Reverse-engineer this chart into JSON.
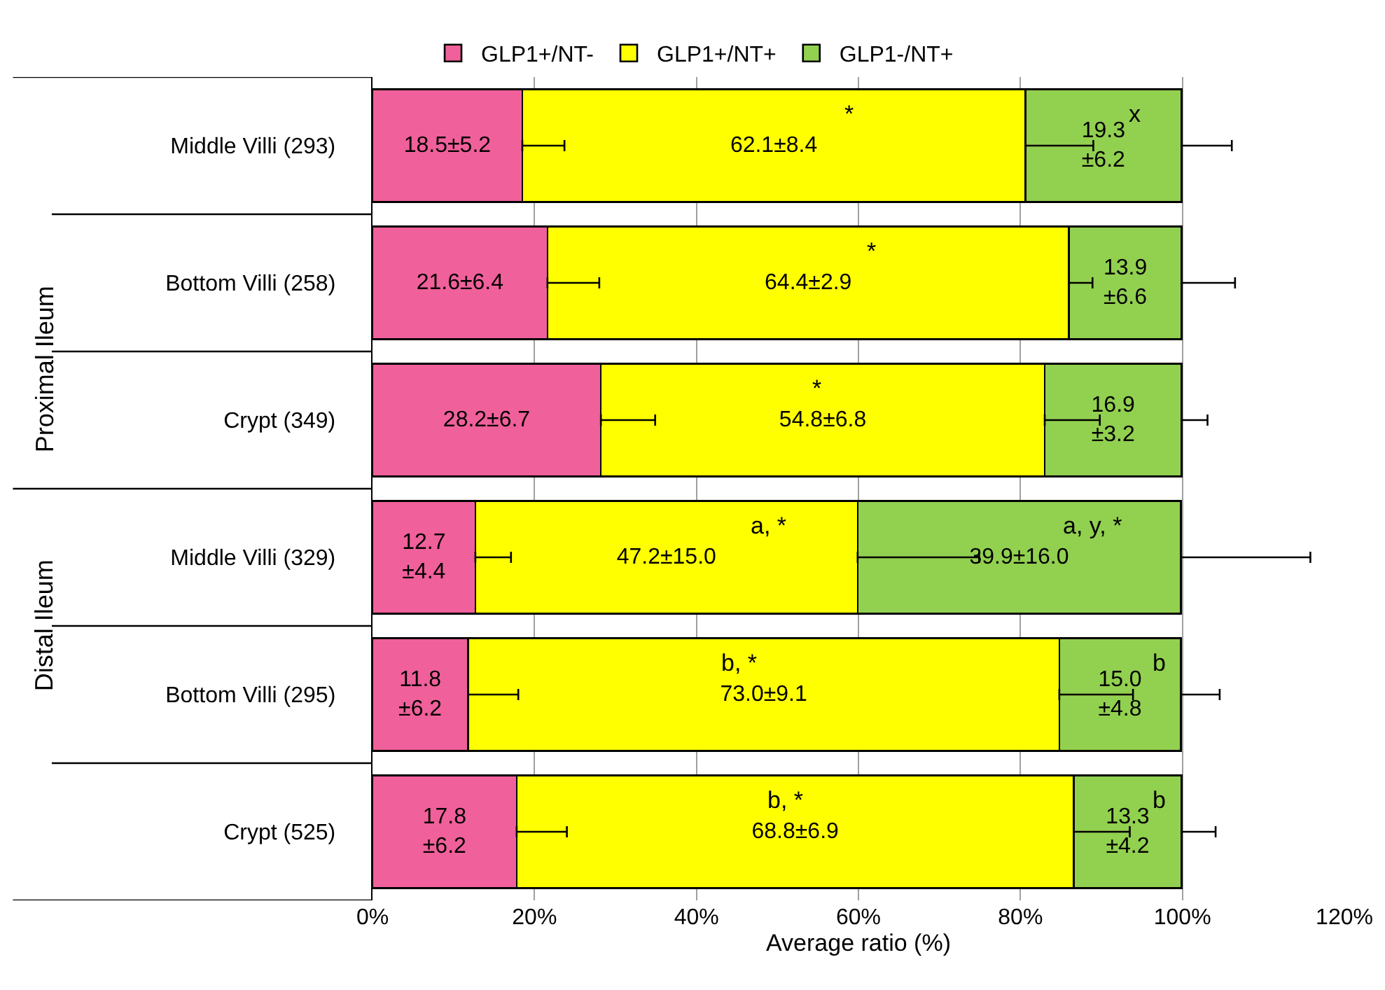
{
  "chart_data": {
    "type": "bar",
    "orientation": "horizontal",
    "stacked": true,
    "xlabel": "Average ratio (%)",
    "categories": [
      "Middle Villi (293)",
      "Bottom Villi (258)",
      "Crypt (349)",
      "Middle Villi (329)",
      "Bottom Villi (295)",
      "Crypt (525)"
    ],
    "series": [
      {
        "name": "GLP1+/NT-",
        "color": "#f0609a",
        "values": [
          18.5,
          21.6,
          28.2,
          12.7,
          11.8,
          17.8
        ],
        "errors": [
          [
            18.5,
            23.7
          ],
          [
            21.6,
            28.0
          ],
          [
            28.2,
            34.9
          ],
          [
            12.7,
            17.1
          ],
          [
            11.8,
            18.0
          ],
          [
            17.8,
            24.0
          ]
        ],
        "value_labels": [
          "18.5±5.2",
          "21.6±6.4",
          "28.2±6.7",
          "12.7\n±4.4",
          "11.8\n±6.2",
          "17.8\n±6.2"
        ]
      },
      {
        "name": "GLP1+/NT+",
        "color": "#ffff00",
        "values": [
          62.1,
          64.4,
          54.8,
          47.2,
          73.0,
          68.8
        ],
        "errors": [
          [
            80.6,
            89.0
          ],
          [
            86.0,
            88.9
          ],
          [
            83.0,
            89.8
          ],
          [
            59.9,
            74.9
          ],
          [
            84.8,
            93.9
          ],
          [
            86.6,
            93.5
          ]
        ],
        "value_labels": [
          "62.1±8.4",
          "64.4±2.9",
          "54.8±6.8",
          "47.2±15.0",
          "73.0±9.1",
          "68.8±6.9"
        ]
      },
      {
        "name": "GLP1-/NT+",
        "color": "#92d050",
        "values": [
          19.3,
          13.9,
          16.9,
          39.9,
          15.0,
          13.3
        ],
        "errors": [
          [
            99.9,
            106.1
          ],
          [
            99.9,
            106.5
          ],
          [
            99.9,
            103.1
          ],
          [
            99.8,
            115.8
          ],
          [
            99.8,
            104.6
          ],
          [
            99.9,
            104.1
          ]
        ],
        "value_labels": [
          "19.3\n±6.2",
          "13.9\n±6.6",
          "16.9\n±3.2",
          "39.9±16.0",
          "15.0\n±4.8",
          "13.3\n±4.2"
        ]
      }
    ],
    "xlim": [
      0,
      120
    ],
    "xticks": [
      {
        "value": 0,
        "label": "0%"
      },
      {
        "value": 20,
        "label": "20%"
      },
      {
        "value": 40,
        "label": "40%"
      },
      {
        "value": 60,
        "label": "60%"
      },
      {
        "value": 80,
        "label": "80%"
      },
      {
        "value": 100,
        "label": "100%"
      },
      {
        "value": 120,
        "label": "120%"
      }
    ],
    "grid": "x",
    "legend": "top",
    "annotations": [
      "Proximal Ileum",
      "Distal Ileum",
      "*",
      "x",
      "*",
      "*",
      "a, *",
      "a, y, *",
      "b, *",
      "b",
      "b, *",
      "b"
    ]
  }
}
